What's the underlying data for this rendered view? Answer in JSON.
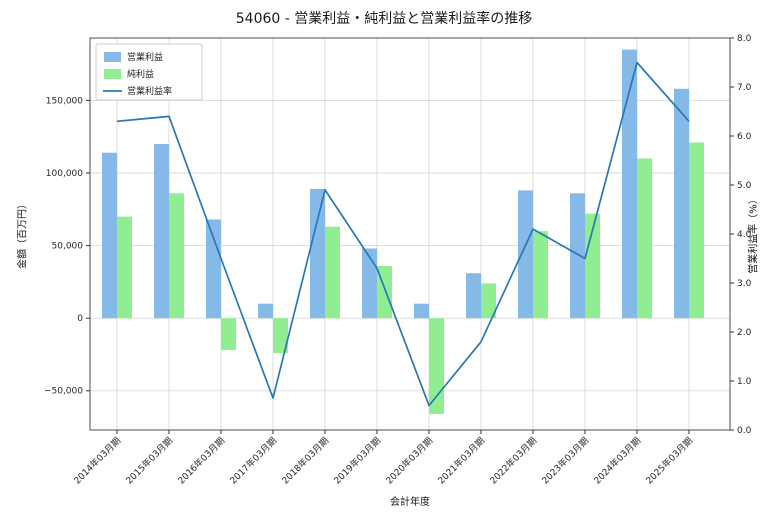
{
  "chart_data": {
    "type": "bar",
    "title": "54060 - 営業利益・純利益と営業利益率の推移",
    "xlabel": "会計年度",
    "ylabel_left": "金額（百万円）",
    "ylabel_right": "営業利益率（%）",
    "categories": [
      "2014年03月期",
      "2015年03月期",
      "2016年03月期",
      "2017年03月期",
      "2018年03月期",
      "2019年03月期",
      "2020年03月期",
      "2021年03月期",
      "2022年03月期",
      "2023年03月期",
      "2024年03月期",
      "2025年03月期"
    ],
    "series": [
      {
        "name": "営業利益",
        "key": "operating-income",
        "type": "bar",
        "axis": "left",
        "color": "#85b9e8",
        "values": [
          114000,
          120000,
          68000,
          10000,
          89000,
          48000,
          10000,
          31000,
          88000,
          86000,
          185000,
          158000
        ]
      },
      {
        "name": "純利益",
        "key": "net-income",
        "type": "bar",
        "axis": "left",
        "color": "#90ee90",
        "values": [
          70000,
          86000,
          -22000,
          -24000,
          63000,
          36000,
          -66000,
          24000,
          60000,
          72000,
          110000,
          121000
        ]
      },
      {
        "name": "営業利益率",
        "key": "operating-margin",
        "type": "line",
        "axis": "right",
        "color": "#2878b5",
        "values": [
          6.3,
          6.4,
          3.5,
          0.65,
          4.9,
          3.3,
          0.5,
          1.8,
          4.1,
          3.5,
          7.5,
          6.3
        ]
      }
    ],
    "left_axis": {
      "min": -77000,
      "max": 193000,
      "ticks": [
        -50000,
        0,
        50000,
        100000,
        150000
      ]
    },
    "right_axis": {
      "min": 0,
      "max": 8,
      "ticks": [
        0,
        1,
        2,
        3,
        4,
        5,
        6,
        7,
        8
      ]
    },
    "grid": true,
    "legend_position": "upper left"
  }
}
